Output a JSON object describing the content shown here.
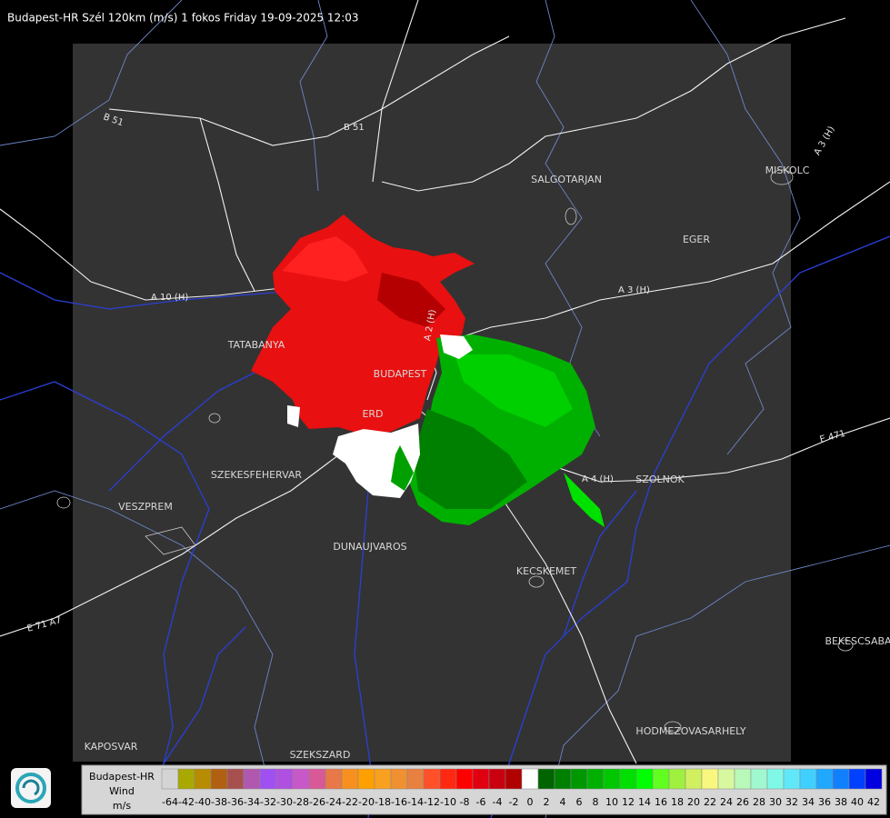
{
  "header": {
    "title": "Budapest-HR Szél 120km (m/s) 1 fokos Friday 19-09-2025 12:03"
  },
  "map": {
    "places": [
      "SALGOTARJAN",
      "MISKOLC",
      "EGER",
      "TATABANYA",
      "BUDAPEST",
      "ERD",
      "SZEKESFEHERVAR",
      "VESZPREM",
      "DUNAUJVAROS",
      "KECSKEMET",
      "SZOLNOK",
      "BEKESCSABA",
      "HODMEZOVASARHELY",
      "KAPOSVAR",
      "SZEKSZARD"
    ],
    "roads": [
      "B 51",
      "B 51",
      "A 3 (H)",
      "A 3 (H)",
      "A 10 (H)",
      "A 2 (H)",
      "A 4 (H)",
      "E 471",
      "E 71 A7"
    ]
  },
  "legend": {
    "title": "Budapest-HR",
    "quantity": "Wind",
    "unit": "m/s",
    "values": [
      -64,
      -42,
      -40,
      -38,
      -36,
      -34,
      -32,
      -30,
      -28,
      -26,
      -24,
      -22,
      -20,
      -18,
      -16,
      -14,
      -12,
      -10,
      -8,
      -6,
      -4,
      -2,
      0,
      2,
      4,
      6,
      8,
      10,
      12,
      14,
      16,
      18,
      20,
      22,
      24,
      26,
      28,
      30,
      32,
      34,
      36,
      38,
      40,
      42
    ],
    "colors": [
      "#d4d4d4",
      "#a8a800",
      "#b88c00",
      "#b06010",
      "#a85050",
      "#b058b0",
      "#a050f0",
      "#b050e0",
      "#c858c8",
      "#d85898",
      "#e87848",
      "#f89020",
      "#ffa000",
      "#f8a020",
      "#f09030",
      "#e88040",
      "#ff5028",
      "#ff2810",
      "#ff0000",
      "#e00010",
      "#c80010",
      "#b00000",
      "#ffffff",
      "#006400",
      "#008000",
      "#009800",
      "#00b000",
      "#00c800",
      "#00e000",
      "#00ff00",
      "#60ff20",
      "#a0f040",
      "#d0f060",
      "#f8f880",
      "#d8f8a0",
      "#b8f8b8",
      "#a0f8d0",
      "#80f8e8",
      "#60e8f8",
      "#40d0ff",
      "#20a8ff",
      "#1080ff",
      "#0040ff",
      "#0000e0"
    ]
  }
}
